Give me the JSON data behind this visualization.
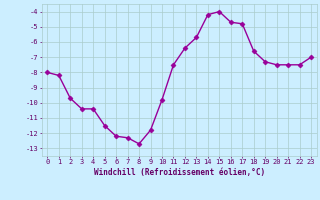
{
  "x": [
    0,
    1,
    2,
    3,
    4,
    5,
    6,
    7,
    8,
    9,
    10,
    11,
    12,
    13,
    14,
    15,
    16,
    17,
    18,
    19,
    20,
    21,
    22,
    23
  ],
  "y": [
    -8.0,
    -8.2,
    -9.7,
    -10.4,
    -10.4,
    -11.5,
    -12.2,
    -12.3,
    -12.7,
    -11.8,
    -9.8,
    -7.5,
    -6.4,
    -5.7,
    -4.2,
    -4.0,
    -4.7,
    -4.8,
    -6.6,
    -7.3,
    -7.5,
    -7.5,
    -7.5,
    -7.0
  ],
  "line_color": "#990099",
  "marker": "D",
  "markersize": 2.5,
  "linewidth": 1.0,
  "xlabel": "Windchill (Refroidissement éolien,°C)",
  "xlabel_fontsize": 5.5,
  "xlabel_color": "#660066",
  "ylim": [
    -13.5,
    -3.5
  ],
  "xlim": [
    -0.5,
    23.5
  ],
  "yticks": [
    -13,
    -12,
    -11,
    -10,
    -9,
    -8,
    -7,
    -6,
    -5,
    -4
  ],
  "xticks": [
    0,
    1,
    2,
    3,
    4,
    5,
    6,
    7,
    8,
    9,
    10,
    11,
    12,
    13,
    14,
    15,
    16,
    17,
    18,
    19,
    20,
    21,
    22,
    23
  ],
  "tick_fontsize": 5.0,
  "tick_color": "#660066",
  "grid_color": "#aacccc",
  "bg_color": "#cceeff",
  "fig_bg_color": "#cceeff"
}
